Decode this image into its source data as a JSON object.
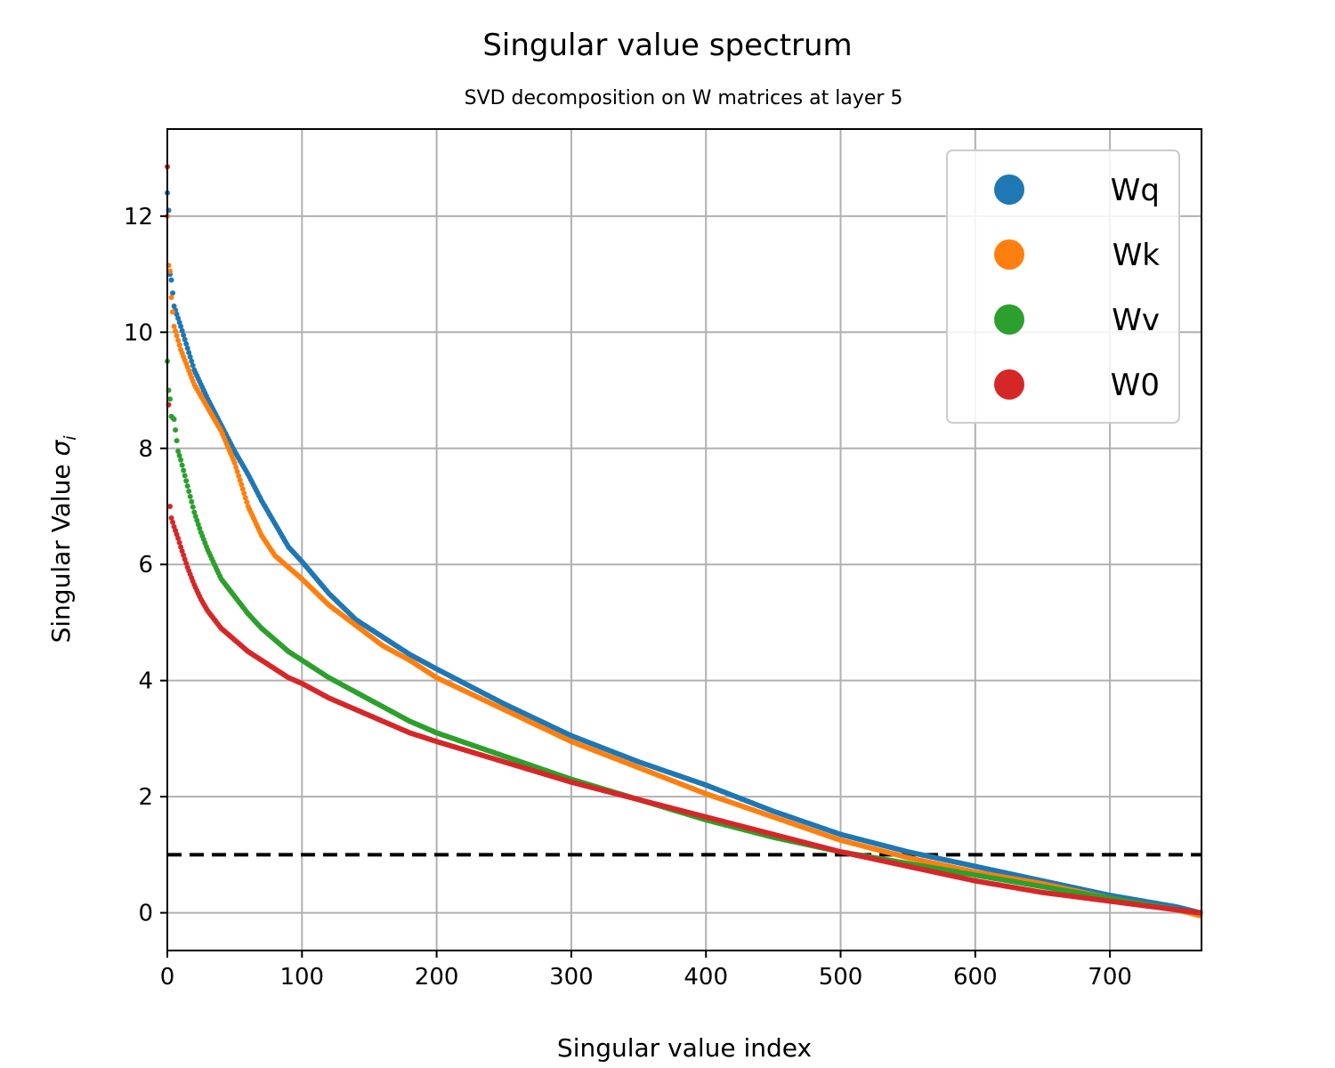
{
  "chart_data": {
    "type": "scatter",
    "title": "Singular value spectrum",
    "subtitle": "SVD decomposition on W matrices at layer 5",
    "xlabel": "Singular value index",
    "ylabel_prefix": "Singular Value ",
    "ylabel_symbol": "σ",
    "ylabel_subscript": "i",
    "xlim": [
      0,
      768
    ],
    "ylim": [
      -0.65,
      13.5
    ],
    "xticks": [
      0,
      100,
      200,
      300,
      400,
      500,
      600,
      700
    ],
    "yticks": [
      0,
      2,
      4,
      6,
      8,
      10,
      12
    ],
    "grid": true,
    "legend_position": "top-right",
    "reference_line": {
      "y": 1.0,
      "style": "dashed",
      "color": "#000000"
    },
    "colors": {
      "Wq": "#1f77b4",
      "Wk": "#ff7f0e",
      "Wv": "#2ca02c",
      "W0": "#d62728"
    },
    "series": [
      {
        "name": "Wq",
        "x": [
          0,
          1,
          2,
          3,
          5,
          10,
          20,
          30,
          40,
          50,
          60,
          70,
          80,
          90,
          100,
          120,
          140,
          160,
          180,
          200,
          250,
          300,
          350,
          400,
          450,
          500,
          550,
          600,
          650,
          700,
          750,
          767
        ],
        "y": [
          12.4,
          12.1,
          11.0,
          10.9,
          10.45,
          10.1,
          9.35,
          8.85,
          8.4,
          7.95,
          7.55,
          7.1,
          6.7,
          6.3,
          6.05,
          5.5,
          5.05,
          4.75,
          4.45,
          4.2,
          3.6,
          3.05,
          2.6,
          2.2,
          1.75,
          1.35,
          1.05,
          0.8,
          0.55,
          0.3,
          0.1,
          0.0
        ]
      },
      {
        "name": "Wk",
        "x": [
          0,
          1,
          2,
          3,
          5,
          10,
          20,
          30,
          40,
          50,
          60,
          70,
          80,
          90,
          100,
          120,
          140,
          160,
          180,
          200,
          250,
          300,
          350,
          400,
          450,
          500,
          550,
          600,
          650,
          700,
          750,
          767
        ],
        "y": [
          12.0,
          11.15,
          11.05,
          10.6,
          10.1,
          9.7,
          9.1,
          8.7,
          8.3,
          7.75,
          7.0,
          6.5,
          6.15,
          5.95,
          5.75,
          5.3,
          4.95,
          4.6,
          4.35,
          4.05,
          3.5,
          2.95,
          2.5,
          2.05,
          1.65,
          1.25,
          0.95,
          0.7,
          0.5,
          0.25,
          0.05,
          -0.05
        ]
      },
      {
        "name": "Wv",
        "x": [
          0,
          1,
          2,
          3,
          5,
          8,
          10,
          15,
          20,
          25,
          30,
          40,
          50,
          60,
          70,
          80,
          90,
          100,
          120,
          140,
          160,
          180,
          200,
          250,
          300,
          350,
          400,
          450,
          500,
          550,
          600,
          650,
          700,
          750,
          767
        ],
        "y": [
          9.5,
          9.0,
          8.85,
          8.55,
          8.5,
          7.95,
          7.8,
          7.35,
          6.9,
          6.55,
          6.25,
          5.75,
          5.45,
          5.15,
          4.9,
          4.7,
          4.5,
          4.35,
          4.05,
          3.8,
          3.55,
          3.3,
          3.1,
          2.7,
          2.3,
          1.95,
          1.6,
          1.3,
          1.05,
          0.85,
          0.65,
          0.45,
          0.25,
          0.05,
          0.0
        ]
      },
      {
        "name": "W0",
        "x": [
          0,
          1,
          2,
          3,
          5,
          8,
          10,
          15,
          20,
          25,
          30,
          40,
          50,
          60,
          70,
          80,
          90,
          100,
          120,
          140,
          160,
          180,
          200,
          250,
          300,
          350,
          400,
          450,
          500,
          550,
          600,
          650,
          700,
          750,
          767
        ],
        "y": [
          12.85,
          8.75,
          7.0,
          6.8,
          6.65,
          6.45,
          6.3,
          5.95,
          5.65,
          5.4,
          5.2,
          4.9,
          4.7,
          4.5,
          4.35,
          4.2,
          4.05,
          3.95,
          3.7,
          3.5,
          3.3,
          3.1,
          2.95,
          2.6,
          2.25,
          1.95,
          1.65,
          1.35,
          1.05,
          0.8,
          0.55,
          0.35,
          0.2,
          0.05,
          0.0
        ]
      }
    ]
  }
}
